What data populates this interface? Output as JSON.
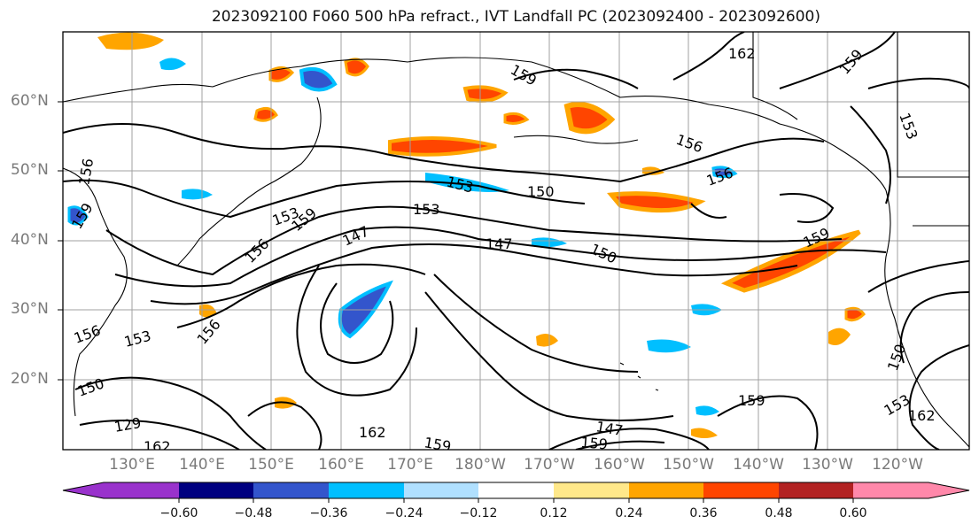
{
  "title": "2023092100 F060 500 hPa refract., IVT Landfall PC (2023092400 - 2023092600)",
  "lat_labels": [
    "60°N",
    "50°N",
    "40°N",
    "30°N",
    "20°N"
  ],
  "lon_labels": [
    "130°E",
    "140°E",
    "150°E",
    "160°E",
    "170°E",
    "180°W",
    "170°W",
    "160°W",
    "150°W",
    "140°W",
    "130°W",
    "120°W"
  ],
  "contour_labels": [
    "162",
    "159",
    "153",
    "156",
    "156",
    "156",
    "159",
    "153",
    "150",
    "153",
    "147",
    "147",
    "150",
    "159",
    "156",
    "159",
    "153",
    "156",
    "150",
    "129",
    "162",
    "162",
    "159",
    "147",
    "159",
    "159",
    "153",
    "150",
    "153",
    "162",
    "159",
    "156"
  ],
  "colorbar": {
    "tick_labels": [
      "−0.60",
      "−0.48",
      "−0.36",
      "−0.24",
      "−0.12",
      "0.12",
      "0.24",
      "0.36",
      "0.48",
      "0.60"
    ],
    "colors": [
      "#9932cc",
      "#000080",
      "#3355cc",
      "#00bfff",
      "#b0e0ff",
      "#ffffff",
      "#ffe88a",
      "#ffa500",
      "#ff4500",
      "#b22222",
      "#ff88aa"
    ]
  }
}
